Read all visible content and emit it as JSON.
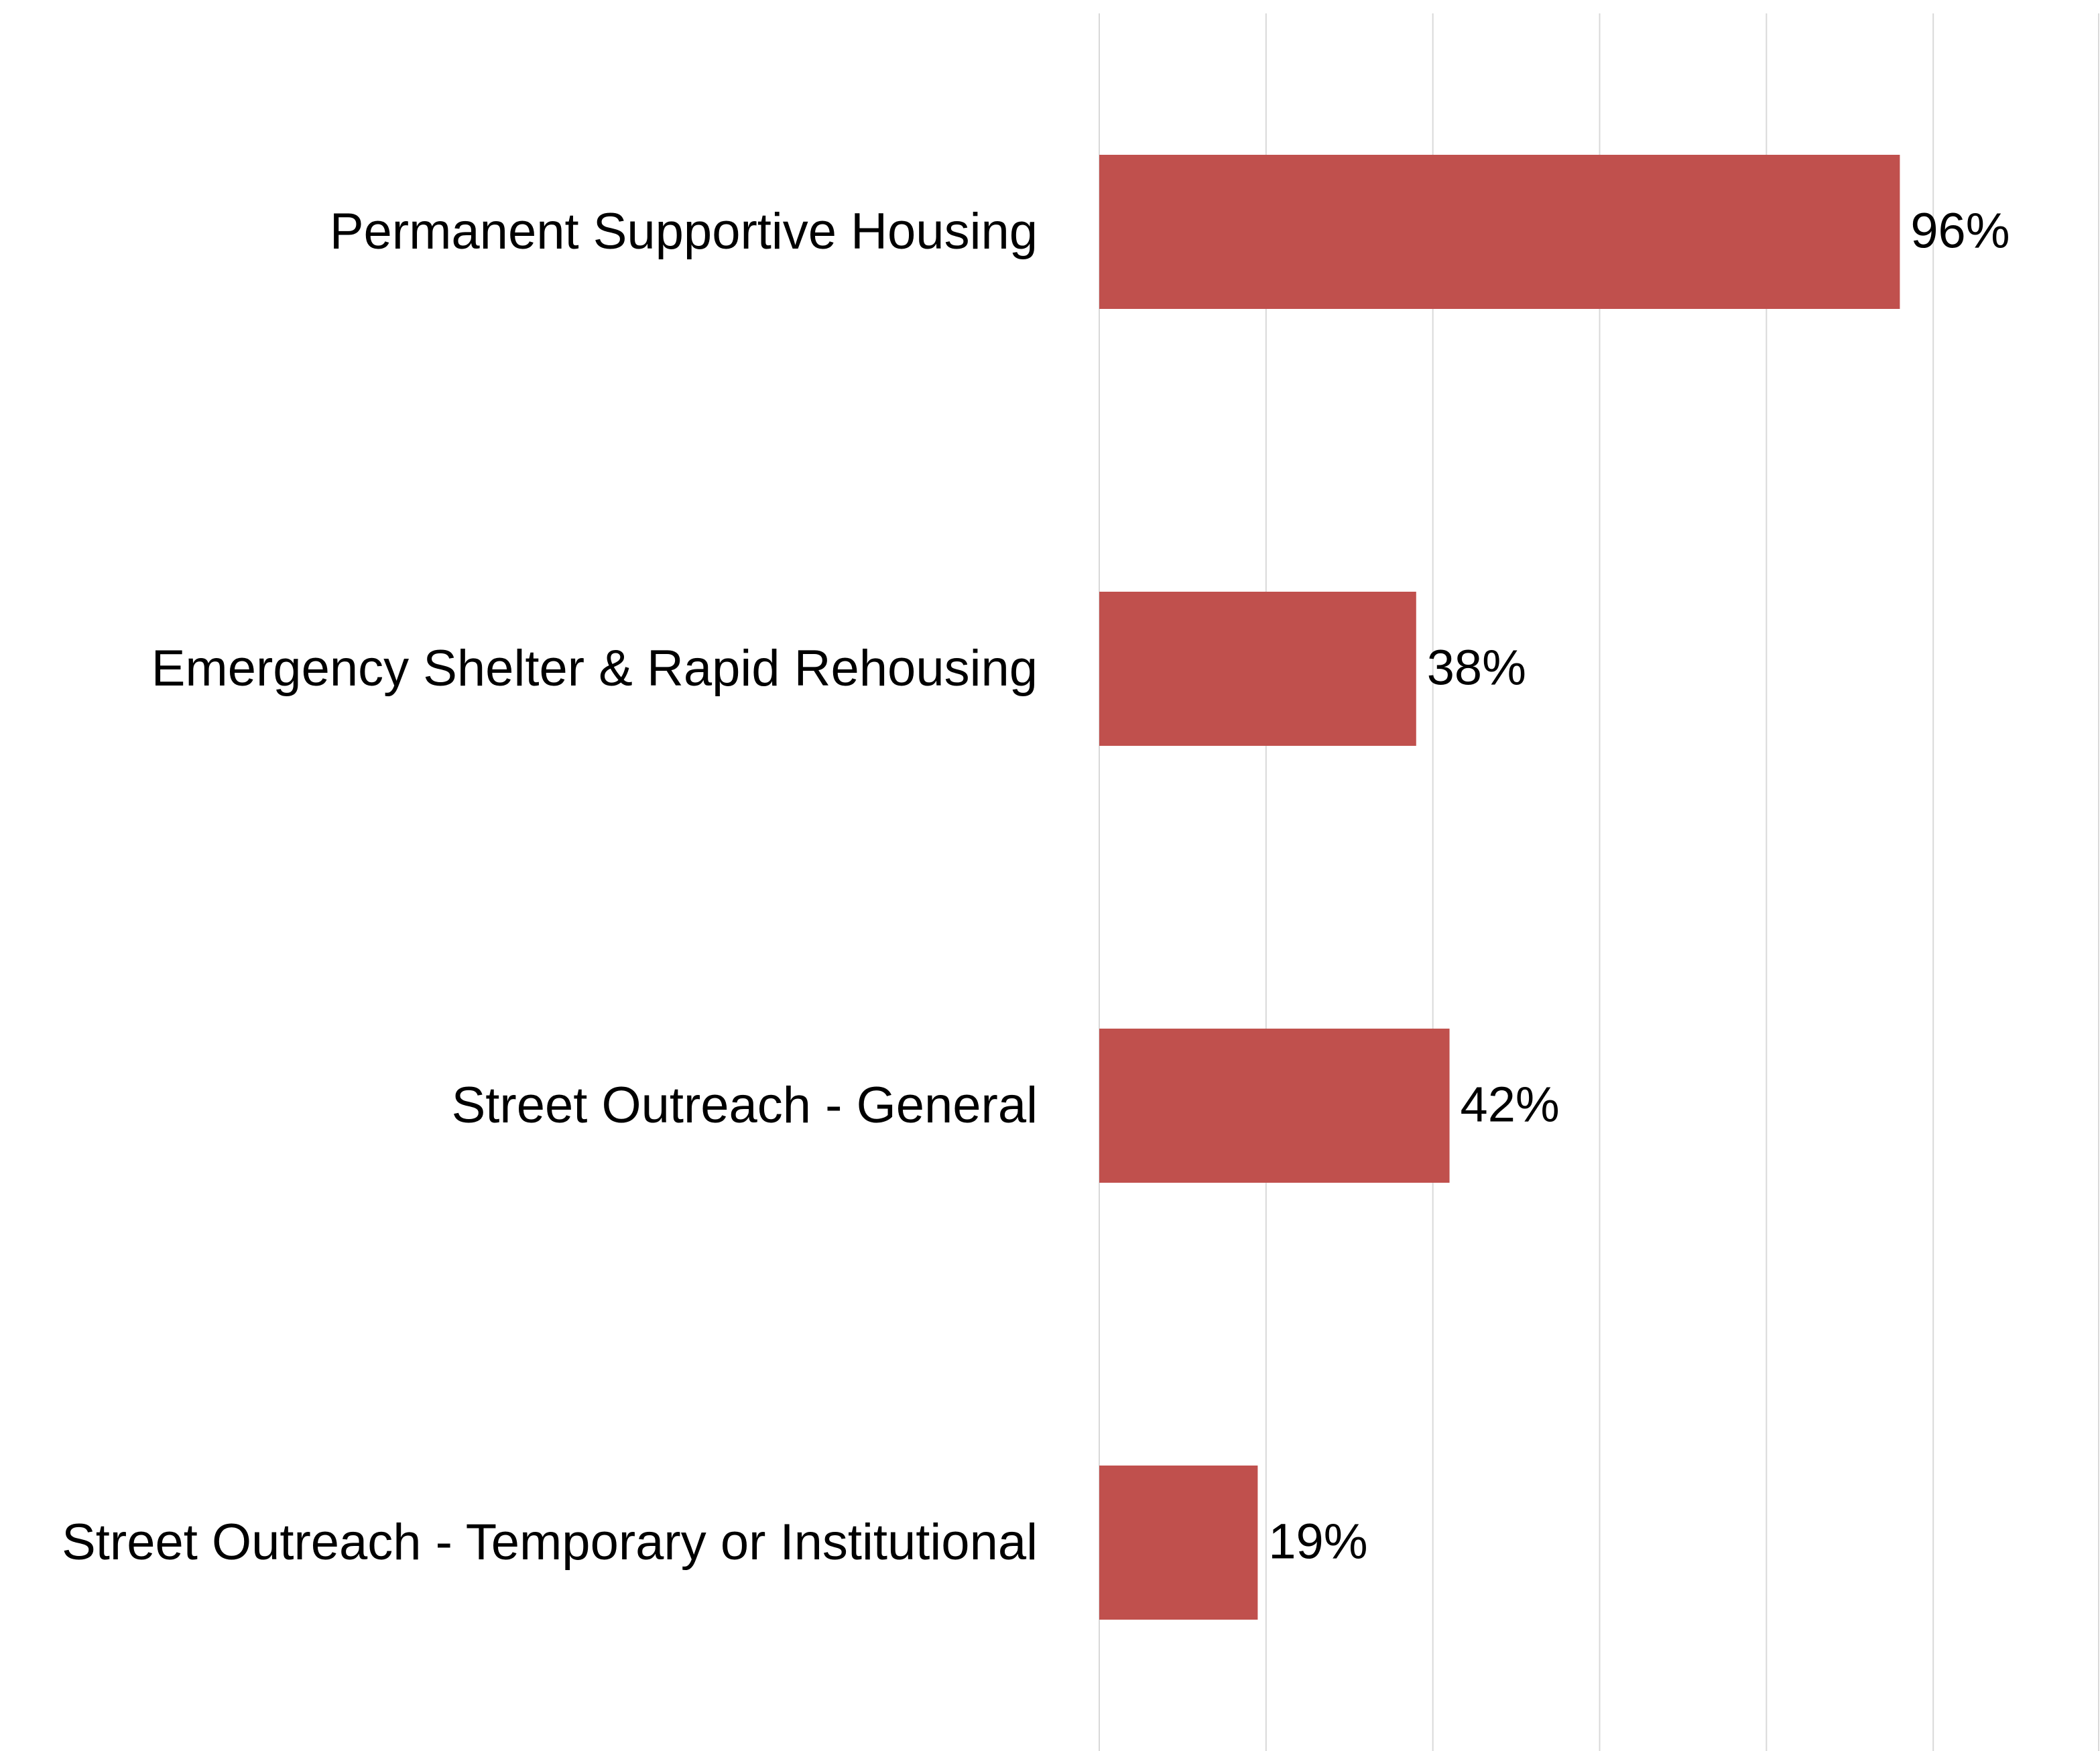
{
  "chart_data": {
    "type": "bar",
    "orientation": "horizontal",
    "categories": [
      "Permanent Supportive Housing",
      "Emergency Shelter & Rapid Rehousing",
      "Street Outreach - General",
      "Street Outreach - Temporary or Institutional"
    ],
    "values": [
      96,
      38,
      42,
      19
    ],
    "value_labels": [
      "96%",
      "38%",
      "42%",
      "19%"
    ],
    "color": "#c0504d",
    "xlim": [
      0,
      120
    ],
    "xticks": [
      0,
      20,
      40,
      60,
      80,
      100,
      120
    ],
    "grid": true
  }
}
